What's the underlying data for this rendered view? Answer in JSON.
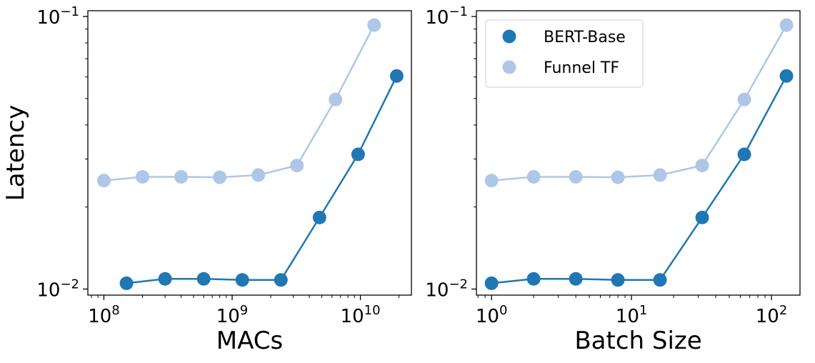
{
  "chart_data": [
    {
      "type": "line",
      "xlabel": "MACs",
      "ylabel": "Latency",
      "x_scale": "log",
      "y_scale": "log",
      "xlim": [
        75000000,
        25000000000
      ],
      "ylim": [
        0.0095,
        0.105
      ],
      "x_ticks": [
        {
          "value": 100000000,
          "base": "10",
          "exp": "8"
        },
        {
          "value": 1000000000,
          "base": "10",
          "exp": "9"
        },
        {
          "value": 10000000000,
          "base": "10",
          "exp": "10"
        }
      ],
      "y_ticks": [
        {
          "value": 0.01,
          "base": "10",
          "exp": "−2"
        },
        {
          "value": 0.1,
          "base": "10",
          "exp": "−1"
        }
      ],
      "series": [
        {
          "name": "BERT-Base",
          "color": "#1f77b4",
          "x": [
            150000000,
            300000000,
            600000000,
            1200000000,
            2400000000,
            4800000000,
            9600000000,
            19200000000
          ],
          "y": [
            0.0105,
            0.0109,
            0.0109,
            0.0108,
            0.0108,
            0.0183,
            0.0312,
            0.0605
          ]
        },
        {
          "name": "Funnel TF",
          "color": "#aec7e8",
          "x": [
            100000000,
            200000000,
            400000000,
            800000000,
            1600000000,
            3200000000,
            6400000000,
            12800000000
          ],
          "y": [
            0.025,
            0.0258,
            0.0258,
            0.0257,
            0.0262,
            0.0284,
            0.0496,
            0.093
          ]
        }
      ],
      "legend": null
    },
    {
      "type": "line",
      "xlabel": "Batch Size",
      "ylabel": "",
      "x_scale": "log",
      "y_scale": "log",
      "xlim": [
        0.78,
        160
      ],
      "ylim": [
        0.0095,
        0.105
      ],
      "x_ticks": [
        {
          "value": 1,
          "base": "10",
          "exp": "0"
        },
        {
          "value": 10,
          "base": "10",
          "exp": "1"
        },
        {
          "value": 100,
          "base": "10",
          "exp": "2"
        }
      ],
      "y_ticks": [
        {
          "value": 0.01,
          "base": "10",
          "exp": "−2"
        },
        {
          "value": 0.1,
          "base": "10",
          "exp": "−1"
        }
      ],
      "series": [
        {
          "name": "BERT-Base",
          "color": "#1f77b4",
          "x": [
            1,
            2,
            4,
            8,
            16,
            32,
            64,
            128
          ],
          "y": [
            0.0105,
            0.0109,
            0.0109,
            0.0108,
            0.0108,
            0.0183,
            0.0312,
            0.0605
          ]
        },
        {
          "name": "Funnel TF",
          "color": "#aec7e8",
          "x": [
            1,
            2,
            4,
            8,
            16,
            32,
            64,
            128
          ],
          "y": [
            0.025,
            0.0258,
            0.0258,
            0.0257,
            0.0262,
            0.0284,
            0.0496,
            0.093
          ]
        }
      ],
      "legend": "top-left"
    }
  ]
}
